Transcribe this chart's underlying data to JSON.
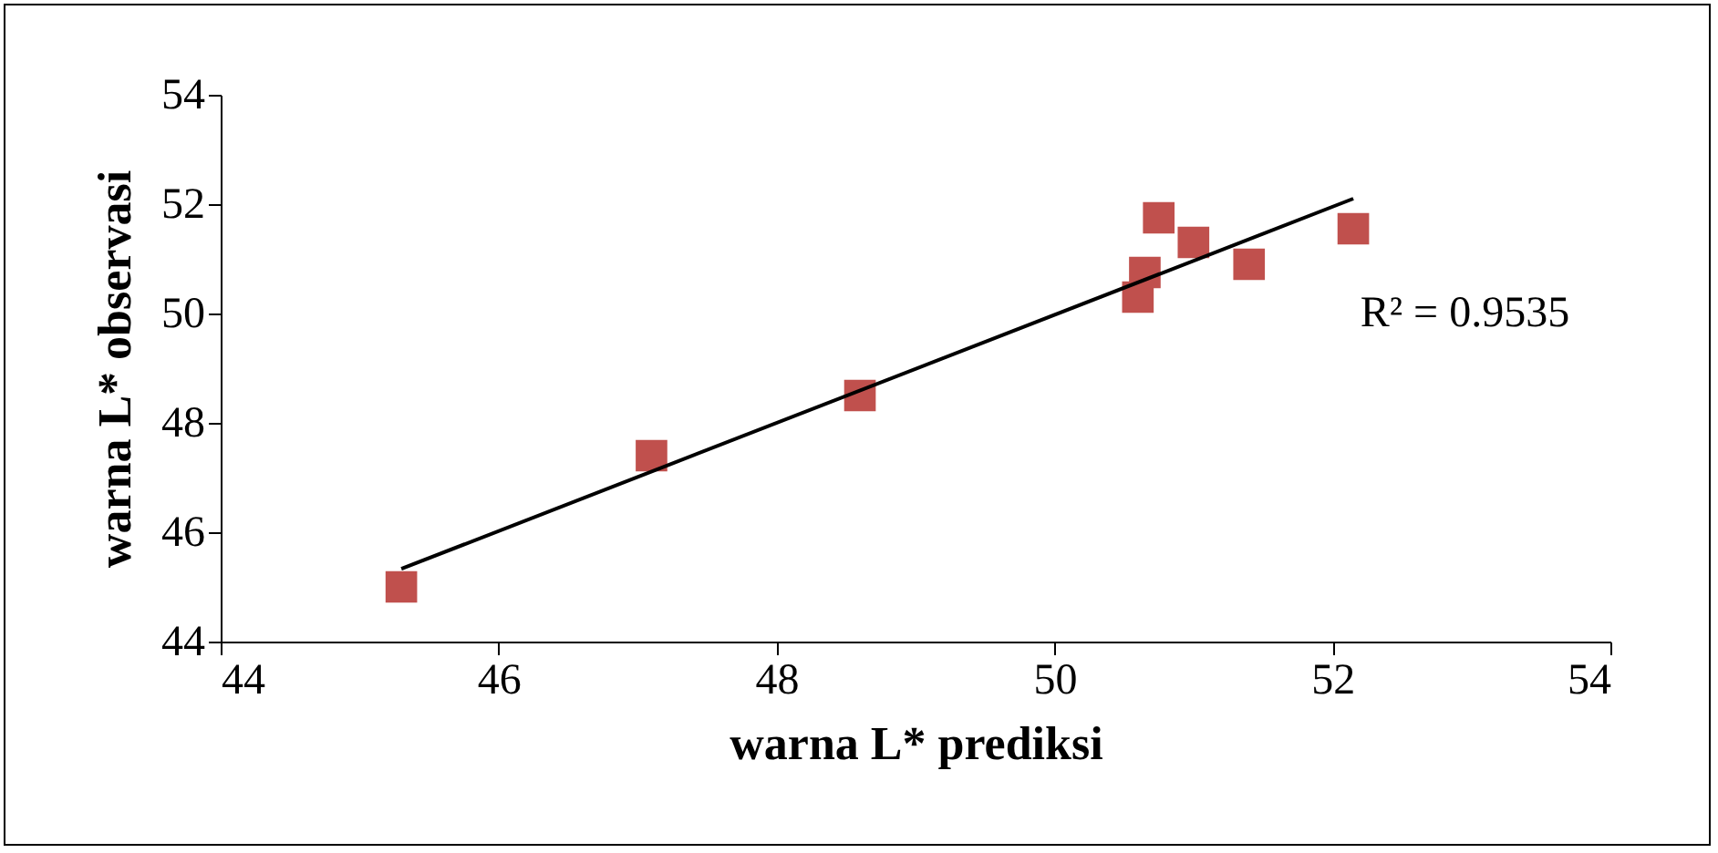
{
  "chart_data": {
    "type": "scatter",
    "xlabel": "warna L* prediksi",
    "ylabel": "warna L* observasi",
    "x": [
      45.3,
      47.1,
      48.6,
      50.6,
      50.65,
      50.75,
      51.0,
      51.4,
      52.15
    ],
    "series": [
      {
        "color": "#c0504d",
        "marker": "square",
        "values": [
          45.0,
          47.4,
          48.5,
          50.3,
          50.75,
          51.75,
          51.3,
          50.9,
          51.55
        ]
      },
      {
        "type": "line",
        "color": "#000000",
        "marker": "none",
        "x": [
          45.3,
          52.15
        ],
        "values": [
          45.33,
          52.1
        ]
      }
    ],
    "xlim": [
      44,
      54
    ],
    "ylim": [
      44,
      54
    ],
    "xticks": [
      44,
      46,
      48,
      50,
      52,
      54
    ],
    "yticks": [
      44,
      46,
      48,
      50,
      52,
      54
    ],
    "line_style": "solid",
    "annotations": [
      "R² = 0.9535"
    ]
  }
}
